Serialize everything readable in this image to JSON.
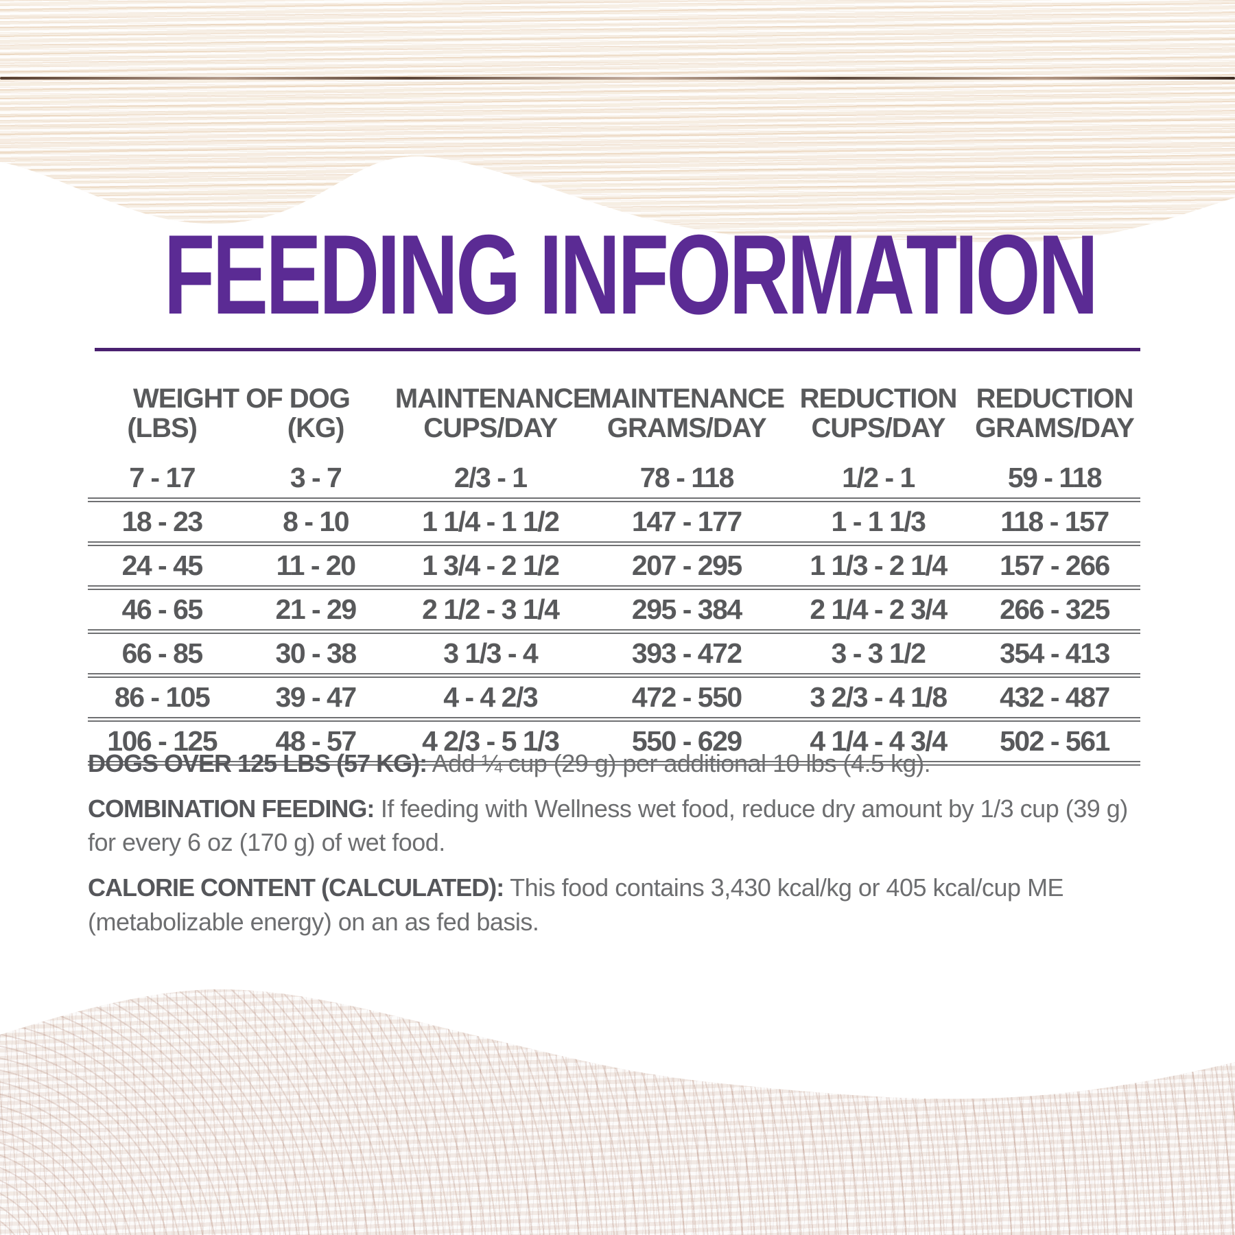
{
  "page": {
    "title": "FEEDING INFORMATION"
  },
  "colors": {
    "title_purple": "#5b2b94",
    "rule_purple": "#4a2170",
    "table_text_gray": "#58595b",
    "note_text_gray": "#6d6e70"
  },
  "table": {
    "group_header": "WEIGHT OF DOG",
    "columns": [
      {
        "top": "",
        "bottom": "(LBS)"
      },
      {
        "top": "",
        "bottom": "(KG)"
      },
      {
        "top": "MAINTENANCE",
        "bottom": "CUPS/DAY"
      },
      {
        "top": "MAINTENANCE",
        "bottom": "GRAMS/DAY"
      },
      {
        "top": "REDUCTION",
        "bottom": "CUPS/DAY"
      },
      {
        "top": "REDUCTION",
        "bottom": "GRAMS/DAY"
      }
    ],
    "rows": [
      [
        "7 - 17",
        "3 - 7",
        "2/3 - 1",
        "78 - 118",
        "1/2 - 1",
        "59 - 118"
      ],
      [
        "18 - 23",
        "8 - 10",
        "1 1/4 - 1 1/2",
        "147 - 177",
        "1 - 1 1/3",
        "118 - 157"
      ],
      [
        "24 - 45",
        "11 - 20",
        "1 3/4 - 2 1/2",
        "207 - 295",
        "1 1/3 - 2 1/4",
        "157 - 266"
      ],
      [
        "46 - 65",
        "21 - 29",
        "2 1/2 - 3 1/4",
        "295 - 384",
        "2 1/4 - 2 3/4",
        "266 - 325"
      ],
      [
        "66 - 85",
        "30 - 38",
        "3 1/3 - 4",
        "393 - 472",
        "3 - 3 1/2",
        "354 - 413"
      ],
      [
        "86 - 105",
        "39 - 47",
        "4 - 4 2/3",
        "472 - 550",
        "3 2/3 - 4 1/8",
        "432 - 487"
      ],
      [
        "106 - 125",
        "48 - 57",
        "4 2/3 - 5 1/3",
        "550 - 629",
        "4 1/4 - 4 3/4",
        "502 - 561"
      ]
    ]
  },
  "notes": [
    {
      "label": "DOGS OVER 125 LBS (57 KG):",
      "text": " Add ¼ cup (29 g) per additional 10 lbs (4.5 kg)."
    },
    {
      "label": "COMBINATION FEEDING:",
      "text": " If feeding with Wellness wet food, reduce dry amount by 1/3 cup (39 g) for every 6 oz (170 g) of wet food."
    },
    {
      "label": "CALORIE CONTENT (CALCULATED):",
      "text": " This food contains 3,430 kcal/kg or 405 kcal/cup ME (metabolizable energy) on an as fed basis."
    }
  ]
}
